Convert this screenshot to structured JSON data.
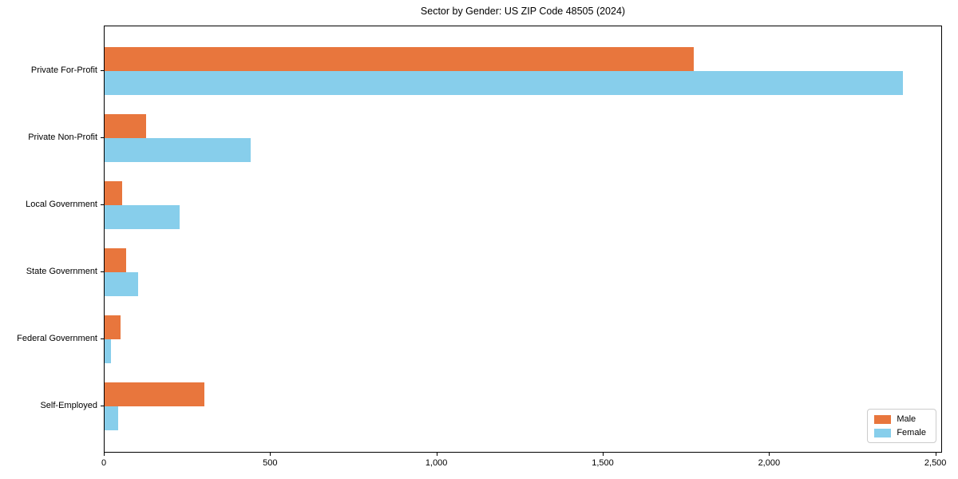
{
  "title": "Sector by Gender: US ZIP Code 48505 (2024)",
  "colors": {
    "male": "#e8763d",
    "female": "#87ceeb",
    "spine": "#000000",
    "legend_border": "#cccccc",
    "background": "#ffffff"
  },
  "legend": {
    "position": "lower right",
    "male_label": "Male",
    "female_label": "Female"
  },
  "chart_data": {
    "type": "bar",
    "orientation": "horizontal",
    "title": "Sector by Gender: US ZIP Code 48505 (2024)",
    "xlabel": "",
    "ylabel": "",
    "grid": false,
    "legend_position": "lower right",
    "categories": [
      "Private For-Profit",
      "Private Non-Profit",
      "Local Government",
      "State Government",
      "Federal Government",
      "Self-Employed"
    ],
    "series": [
      {
        "name": "Male",
        "color": "#e8763d",
        "values": [
          1770,
          125,
          52,
          65,
          48,
          300
        ]
      },
      {
        "name": "Female",
        "color": "#87ceeb",
        "values": [
          2400,
          440,
          225,
          100,
          20,
          40
        ]
      }
    ],
    "xlim": [
      0,
      2520
    ],
    "x_ticks": [
      0,
      500,
      1000,
      1500,
      2000,
      2500
    ],
    "x_tick_labels": [
      "0",
      "500",
      "1,000",
      "1,500",
      "2,000",
      "2,500"
    ]
  }
}
